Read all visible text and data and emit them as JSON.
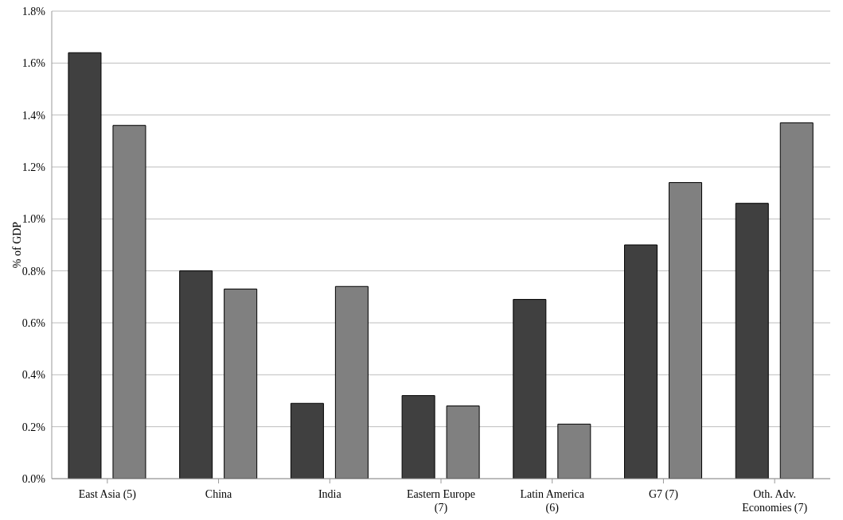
{
  "chart_data": {
    "type": "bar",
    "ylabel": "% of GDP",
    "categories": [
      "East Asia (5)",
      "China",
      "India",
      "Eastern Europe (7)",
      "Latin America (6)",
      "G7 (7)",
      "Oth. Adv. Economies (7)"
    ],
    "series": [
      {
        "color": "#404040",
        "values": [
          1.64,
          0.8,
          0.29,
          0.32,
          0.69,
          0.9,
          1.06
        ]
      },
      {
        "color": "#808080",
        "values": [
          1.36,
          0.73,
          0.74,
          0.28,
          0.21,
          1.14,
          1.37
        ]
      }
    ],
    "ylim": [
      0,
      1.8
    ],
    "yticks": [
      {
        "value": 0,
        "label": "0.0%"
      },
      {
        "value": 0.2,
        "label": "0.2%"
      },
      {
        "value": 0.4,
        "label": "0.4%"
      },
      {
        "value": 0.6,
        "label": "0.6%"
      },
      {
        "value": 0.8,
        "label": "0.8%"
      },
      {
        "value": 1.0,
        "label": "1.0%"
      },
      {
        "value": 1.2,
        "label": "1.2%"
      },
      {
        "value": 1.4,
        "label": "1.4%"
      },
      {
        "value": 1.6,
        "label": "1.6%"
      },
      {
        "value": 1.8,
        "label": "1.8%"
      }
    ],
    "grid": "y",
    "legend": false
  }
}
